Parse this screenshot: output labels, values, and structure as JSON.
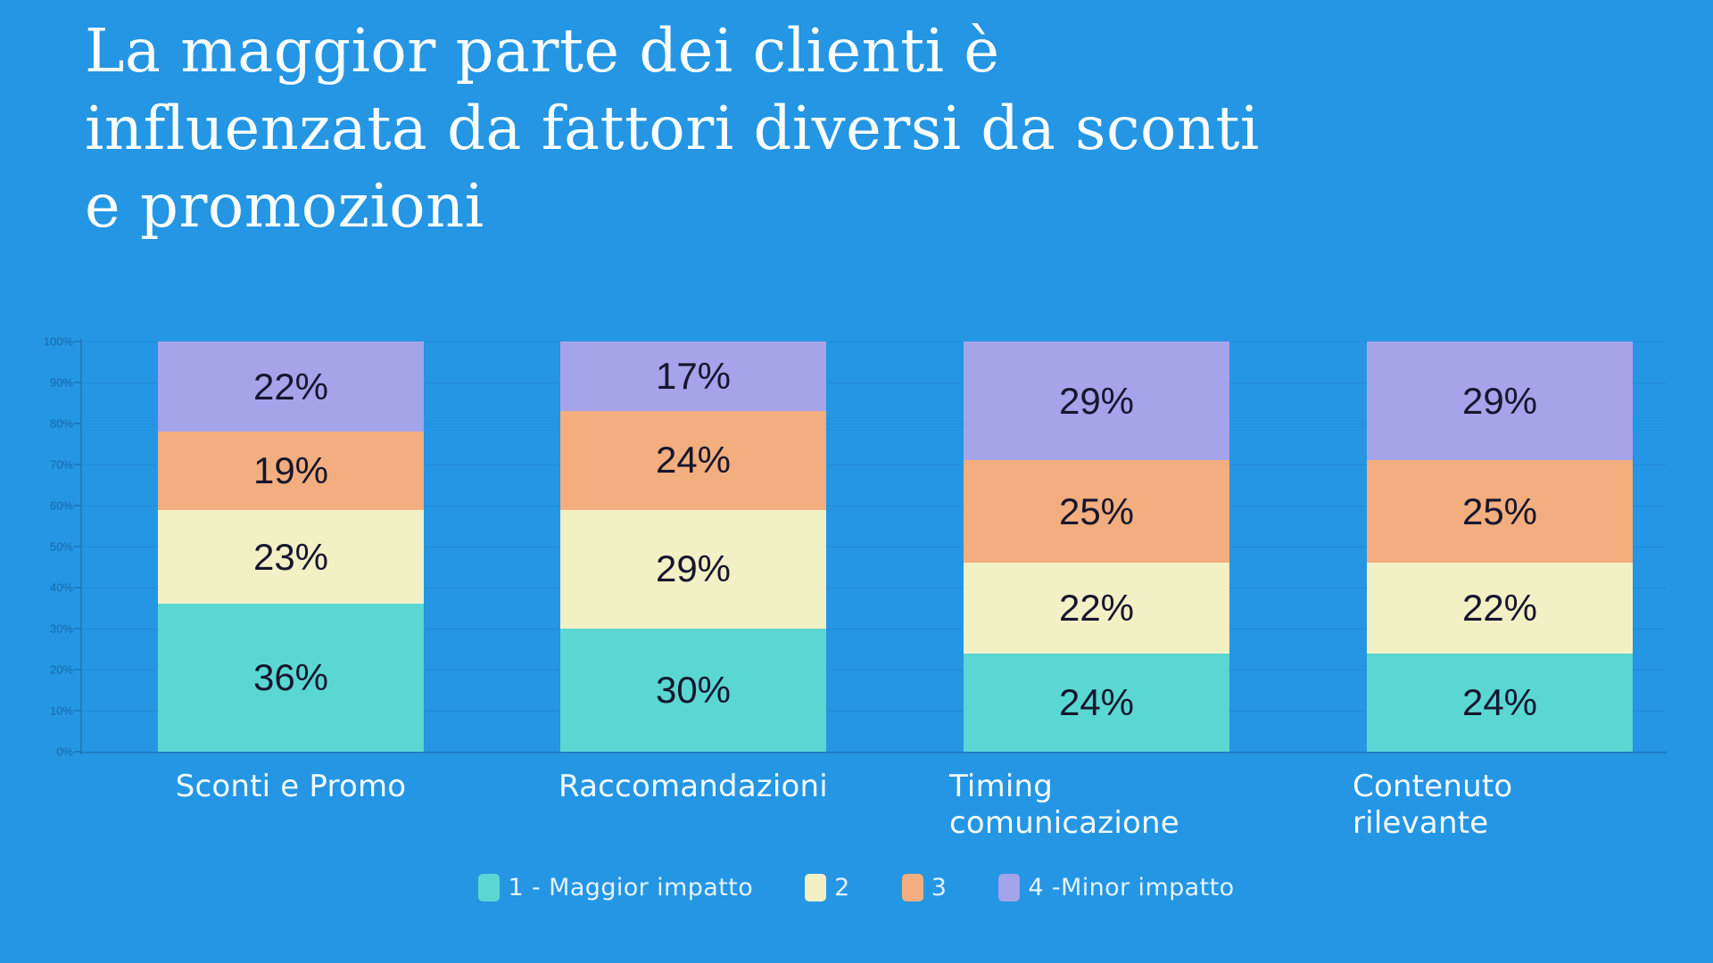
{
  "title": {
    "lines": [
      "La maggior parte dei clienti è",
      "influenzata da fattori diversi da sconti",
      "e promozioni"
    ]
  },
  "colors": {
    "background": "#2496E4",
    "segment_label": "#16162F",
    "series": [
      "#5AD7D2",
      "#F2F0C5",
      "#F2AE7E",
      "#A5A3EA"
    ]
  },
  "chart_data": {
    "type": "bar",
    "stacked": true,
    "orientation": "vertical",
    "categories": [
      "Sconti e Promo",
      "Raccomandazioni",
      "Timing comunicazione",
      "Contenuto rilevante"
    ],
    "series": [
      {
        "name": "1 - Maggior impatto",
        "color": "#5AD7D2",
        "values": [
          36,
          30,
          24,
          24
        ]
      },
      {
        "name": "2",
        "color": "#F2F0C5",
        "values": [
          23,
          29,
          22,
          22
        ]
      },
      {
        "name": "3",
        "color": "#F2AE7E",
        "values": [
          19,
          24,
          25,
          25
        ]
      },
      {
        "name": "4 -Minor impatto",
        "color": "#A5A3EA",
        "values": [
          22,
          17,
          29,
          29
        ]
      }
    ],
    "value_suffix": "%",
    "ylim": [
      0,
      100
    ],
    "y_ticks": [
      "0%",
      "10%",
      "20%",
      "30%",
      "40%",
      "50%",
      "60%",
      "70%",
      "80%",
      "90%",
      "100%"
    ],
    "grid": true,
    "legend_position": "bottom"
  }
}
